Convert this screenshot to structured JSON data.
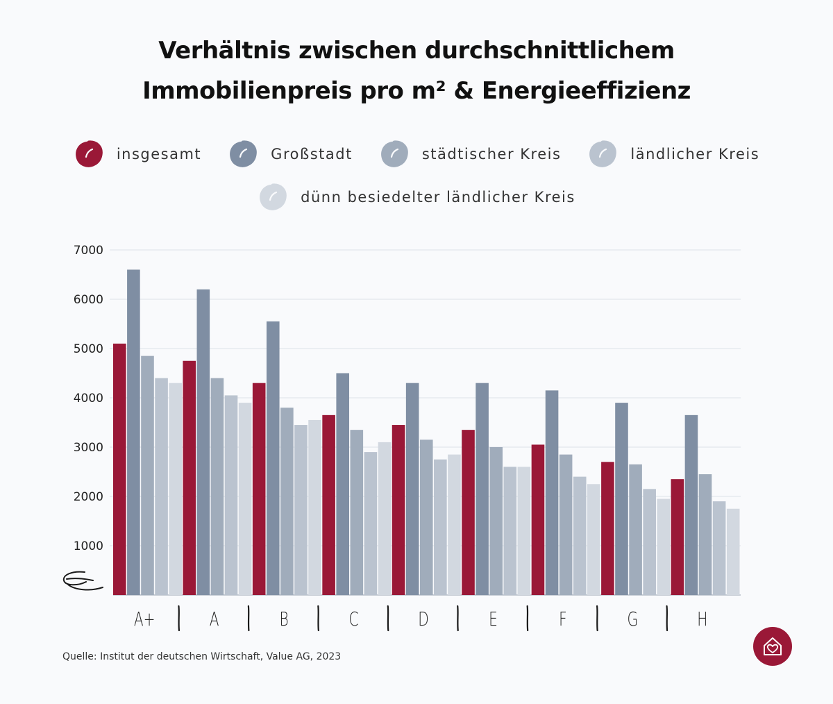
{
  "title_lines": [
    "Verhältnis zwischen durchschnittlichem",
    "Immobilienpreis pro m² & Energieeffizienz"
  ],
  "source": "Quelle: Institut der deutschen Wirtschaft, Value AG, 2023",
  "colors": {
    "insgesamt": "#9a1837",
    "grossstadt": "#7f8ea3",
    "staedtisch": "#a0acbb",
    "laendlich": "#bac3cf",
    "duenn": "#d2d8e0",
    "grid": "#dde1e7",
    "axis": "#b5bcc6",
    "logo": "#9a1837"
  },
  "icons": {
    "axis_break": "squiggle-break-icon",
    "logo": "house-heart-icon",
    "legend": "scribble-circle-icon"
  },
  "chart_data": {
    "type": "bar",
    "categories": [
      "A+",
      "A",
      "B",
      "C",
      "D",
      "E",
      "F",
      "G",
      "H"
    ],
    "series": [
      {
        "name": "insgesamt",
        "values": [
          5100,
          4750,
          4300,
          3650,
          3450,
          3350,
          3050,
          2700,
          2350
        ]
      },
      {
        "name": "Großstadt",
        "values": [
          6600,
          6200,
          5550,
          4500,
          4300,
          4300,
          4150,
          3900,
          3650
        ]
      },
      {
        "name": "städtischer Kreis",
        "values": [
          4850,
          4400,
          3800,
          3350,
          3150,
          3000,
          2850,
          2650,
          2450
        ]
      },
      {
        "name": "ländlicher Kreis",
        "values": [
          4400,
          4050,
          3450,
          2900,
          2750,
          2600,
          2400,
          2150,
          1900
        ]
      },
      {
        "name": "dünn besiedelter ländlicher Kreis",
        "values": [
          4300,
          3900,
          3550,
          3100,
          2850,
          2600,
          2250,
          1950,
          1750
        ]
      }
    ],
    "yticks": [
      1000,
      2000,
      3000,
      4000,
      5000,
      6000,
      7000
    ],
    "ylim": [
      0,
      7000
    ],
    "axis_break": true,
    "grid": true,
    "legend_position": "top-center"
  }
}
